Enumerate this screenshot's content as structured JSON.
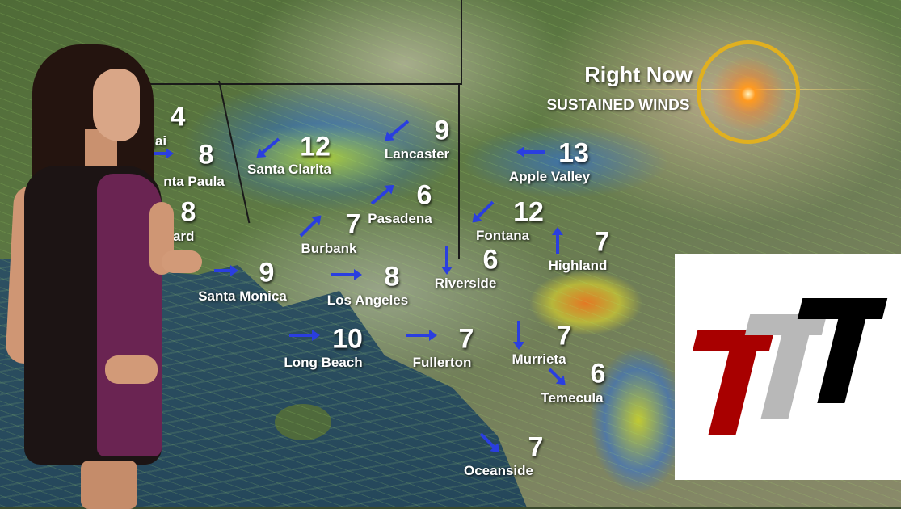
{
  "header": {
    "title": "Right Now",
    "subtitle": "SUSTAINED WINDS"
  },
  "icons": {
    "sun": "sun-flare-icon",
    "wind_arrow": "wind-arrow-icon"
  },
  "colors": {
    "wind_arrow": "#2a3ee0",
    "logo_red": "#a80000",
    "logo_gray": "#b8b8b8",
    "logo_black": "#000000"
  },
  "locations": [
    {
      "city": "Ojai",
      "wind": "4"
    },
    {
      "city": "nta Paula",
      "wind": "8"
    },
    {
      "city": "hard",
      "wind": "8"
    },
    {
      "city": "Santa Clarita",
      "wind": "12"
    },
    {
      "city": "Lancaster",
      "wind": "9"
    },
    {
      "city": "Apple Valley",
      "wind": "13"
    },
    {
      "city": "Pasadena",
      "wind": "6"
    },
    {
      "city": "Burbank",
      "wind": "7"
    },
    {
      "city": "Fontana",
      "wind": "12"
    },
    {
      "city": "Highland",
      "wind": "7"
    },
    {
      "city": "Riverside",
      "wind": "6"
    },
    {
      "city": "Santa Monica",
      "wind": "9"
    },
    {
      "city": "Los Angeles",
      "wind": "8"
    },
    {
      "city": "Long Beach",
      "wind": "10"
    },
    {
      "city": "Fullerton",
      "wind": "7"
    },
    {
      "city": "Murrieta",
      "wind": "7"
    },
    {
      "city": "Temecula",
      "wind": "6"
    },
    {
      "city": "Oceanside",
      "wind": "7"
    }
  ]
}
